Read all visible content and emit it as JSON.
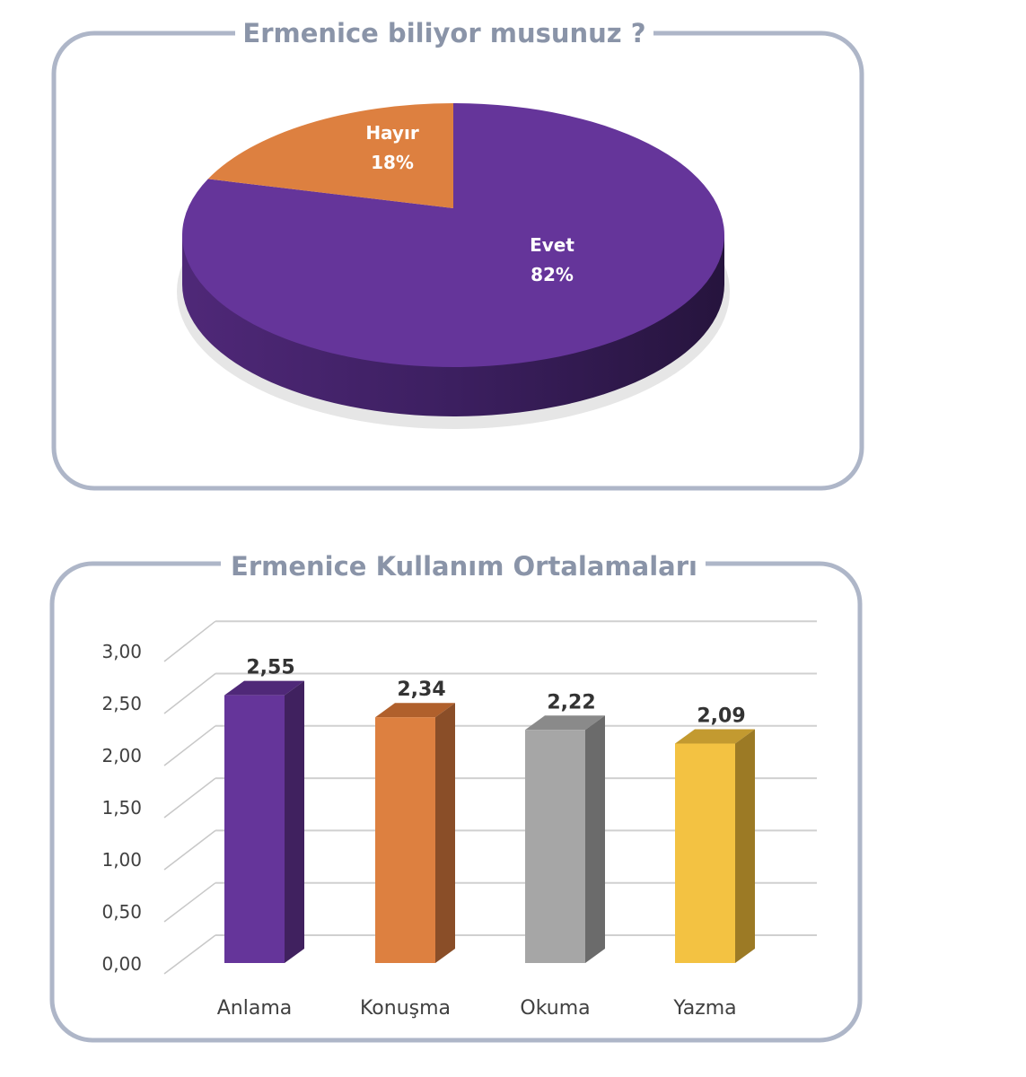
{
  "chart_data": [
    {
      "type": "pie",
      "title": "Ermenice biliyor musunuz ?",
      "slices": [
        {
          "label": "Evet",
          "value": 82,
          "display": "82%",
          "color": "#65359a"
        },
        {
          "label": "Hayır",
          "value": 18,
          "display": "18%",
          "color": "#dd8040"
        }
      ]
    },
    {
      "type": "bar",
      "title": "Ermenice Kullanım Ortalamaları",
      "categories": [
        "Anlama",
        "Konuşma",
        "Okuma",
        "Yazma"
      ],
      "values": [
        2.55,
        2.34,
        2.22,
        2.09
      ],
      "value_labels": [
        "2,55",
        "2,34",
        "2,22",
        "2,09"
      ],
      "colors": [
        "#65359a",
        "#dd8040",
        "#a6a6a6",
        "#f3c242"
      ],
      "yticks": [
        "0,00",
        "0,50",
        "1,00",
        "1,50",
        "2,00",
        "2,50",
        "3,00"
      ],
      "ylim": [
        0,
        3
      ],
      "grid": true
    }
  ]
}
